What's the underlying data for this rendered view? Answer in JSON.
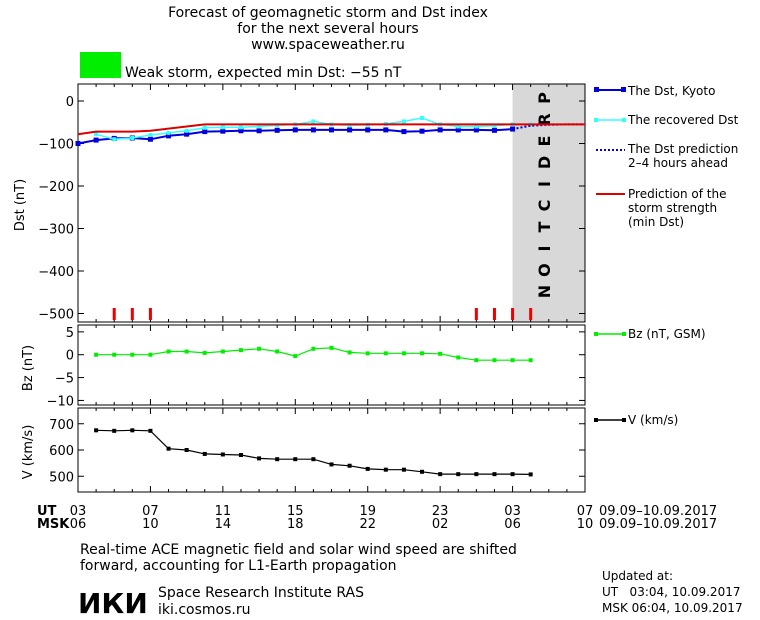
{
  "header": {
    "title_line1": "Forecast of geomagnetic storm and Dst index",
    "title_line2": "for the next several hours",
    "website": "www.spaceweather.ru"
  },
  "status": {
    "color": "#00ee00",
    "text": "Weak storm, expected min Dst: −55 nT"
  },
  "colors": {
    "dst_kyoto": "#0000dd",
    "dst_recovered": "#33ffff",
    "dst_prediction": "#0000cc",
    "storm_strength": "#dd0000",
    "bz": "#00ee00",
    "speed": "#000000",
    "prediction_band": "#d8d8d8",
    "marker_red": "#ee0000"
  },
  "prediction_label": "PREDICTION",
  "legend": {
    "dst_kyoto": "The Dst, Kyoto",
    "dst_recovered": "The recovered Dst",
    "dst_prediction_line1": "The Dst prediction",
    "dst_prediction_line2": "2–4 hours ahead",
    "storm_line1": "Prediction of the",
    "storm_line2": "storm strength",
    "storm_line3": "(min Dst)",
    "bz": "Bz (nT, GSM)",
    "speed": "V (km/s)"
  },
  "axes": {
    "dst_label": "Dst (nT)",
    "bz_label": "Bz (nT)",
    "v_label": "V (km/s)",
    "ut_label": "UT",
    "msk_label": "MSK",
    "ut_ticks": [
      "03",
      "07",
      "11",
      "15",
      "19",
      "23",
      "03",
      "07"
    ],
    "msk_ticks": [
      "06",
      "10",
      "14",
      "18",
      "22",
      "02",
      "06",
      "10"
    ],
    "date_range_ut": "09.09–10.09.2017",
    "date_range_msk": "09.09–10.09.2017"
  },
  "footer": {
    "note_line1": "Real-time ACE magnetic field and solar wind speed are shifted",
    "note_line2": "forward, accounting for L1-Earth propagation",
    "institute": "Space Research Institute RAS",
    "site": "iki.cosmos.ru",
    "logo_text": "ИКИ",
    "updated_label": "Updated at:",
    "updated_ut": "UT   03:04, 10.09.2017",
    "updated_msk": "MSK 06:04, 10.09.2017"
  },
  "chart_data": [
    {
      "type": "line",
      "title": "Dst",
      "ylabel": "Dst (nT)",
      "xlim": [
        3,
        31
      ],
      "ylim": [
        -520,
        40
      ],
      "yticks": [
        0,
        -100,
        -200,
        -300,
        -400,
        -500
      ],
      "prediction_start": 27,
      "series": [
        {
          "name": "The Dst, Kyoto",
          "x": [
            3,
            4,
            5,
            6,
            7,
            8,
            9,
            10,
            11,
            12,
            13,
            14,
            15,
            16,
            17,
            18,
            19,
            20,
            21,
            22,
            23,
            24,
            25,
            26,
            27
          ],
          "y": [
            -100,
            -92,
            -88,
            -87,
            -90,
            -82,
            -78,
            -72,
            -71,
            -70,
            -70,
            -69,
            -68,
            -68,
            -68,
            -68,
            -68,
            -68,
            -72,
            -71,
            -68,
            -68,
            -68,
            -69,
            -66
          ]
        },
        {
          "name": "The recovered Dst",
          "x": [
            4,
            5,
            6,
            7,
            8,
            9,
            10,
            11,
            12,
            13,
            14,
            15,
            16,
            17,
            18,
            19,
            20,
            21,
            22,
            23,
            24,
            25,
            26,
            27,
            28
          ],
          "y": [
            -78,
            -90,
            -87,
            -80,
            -75,
            -70,
            -63,
            -62,
            -62,
            -60,
            -57,
            -55,
            -48,
            -55,
            -57,
            -56,
            -54,
            -48,
            -40,
            -55,
            -60,
            -60,
            -58,
            -55,
            -55
          ]
        },
        {
          "name": "The Dst prediction 2–4 hours ahead",
          "x": [
            27,
            28,
            29,
            30,
            31
          ],
          "y": [
            -66,
            -58,
            -56,
            -55,
            -55
          ]
        },
        {
          "name": "Prediction of the storm strength (min Dst)",
          "x": [
            3,
            4,
            5,
            6,
            7,
            8,
            9,
            10,
            11,
            12,
            13,
            14,
            15,
            16,
            17,
            18,
            19,
            20,
            21,
            22,
            23,
            24,
            25,
            26,
            27,
            28,
            29,
            30,
            31
          ],
          "y": [
            -78,
            -72,
            -72,
            -72,
            -70,
            -65,
            -60,
            -55,
            -55,
            -55,
            -55,
            -55,
            -55,
            -55,
            -55,
            -55,
            -55,
            -55,
            -55,
            -55,
            -55,
            -55,
            -55,
            -55,
            -55,
            -55,
            -55,
            -55,
            -55
          ]
        }
      ],
      "red_markers_x": [
        5,
        6,
        7,
        25,
        26,
        27,
        28
      ]
    },
    {
      "type": "line",
      "title": "Bz",
      "ylabel": "Bz (nT)",
      "xlim": [
        3,
        31
      ],
      "ylim": [
        -11,
        6.5
      ],
      "yticks": [
        5,
        0,
        -5,
        -10
      ],
      "series": [
        {
          "name": "Bz (nT, GSM)",
          "x": [
            4,
            5,
            6,
            7,
            8,
            9,
            10,
            11,
            12,
            13,
            14,
            15,
            16,
            17,
            18,
            19,
            20,
            21,
            22,
            23,
            24,
            25,
            26,
            27,
            28
          ],
          "y": [
            0,
            0,
            0,
            0,
            0.7,
            0.7,
            0.4,
            0.7,
            1,
            1.3,
            0.7,
            -0.3,
            1.3,
            1.5,
            0.5,
            0.3,
            0.3,
            0.3,
            0.3,
            0.2,
            -0.6,
            -1.2,
            -1.2,
            -1.2,
            -1.2
          ]
        }
      ]
    },
    {
      "type": "line",
      "title": "V",
      "ylabel": "V (km/s)",
      "xlim": [
        3,
        31
      ],
      "ylim": [
        440,
        760
      ],
      "yticks": [
        700,
        600,
        500
      ],
      "series": [
        {
          "name": "V (km/s)",
          "x": [
            4,
            5,
            6,
            7,
            8,
            9,
            10,
            11,
            12,
            13,
            14,
            15,
            16,
            17,
            18,
            19,
            20,
            21,
            22,
            23,
            24,
            25,
            26,
            27,
            28
          ],
          "y": [
            675,
            673,
            675,
            673,
            605,
            600,
            585,
            583,
            581,
            568,
            565,
            565,
            565,
            545,
            540,
            528,
            525,
            525,
            517,
            508,
            508,
            508,
            508,
            508,
            507
          ]
        }
      ]
    }
  ]
}
